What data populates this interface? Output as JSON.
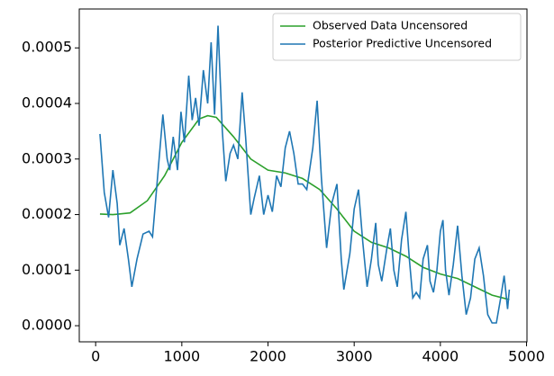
{
  "chart_data": {
    "type": "line",
    "xlim": [
      -190,
      5005
    ],
    "xticks": [
      0,
      1000,
      2000,
      3000,
      4000,
      5000
    ],
    "ylim": [
      -2.9e-05,
      0.00057
    ],
    "yticks": [
      {
        "value": 0,
        "label": "0.0000"
      },
      {
        "value": 0.0001,
        "label": "0.0001"
      },
      {
        "value": 0.0002,
        "label": "0.0002"
      },
      {
        "value": 0.0003,
        "label": "0.0003"
      },
      {
        "value": 0.0004,
        "label": "0.0004"
      },
      {
        "value": 0.0005,
        "label": "0.0005"
      }
    ],
    "legend": "upper right",
    "series": [
      {
        "name": "Observed Data Uncensored",
        "color": "#2ca02c",
        "x": [
          50,
          200,
          400,
          600,
          800,
          1000,
          1200,
          1300,
          1400,
          1600,
          1800,
          2000,
          2200,
          2400,
          2600,
          2800,
          3000,
          3200,
          3400,
          3600,
          3800,
          4000,
          4200,
          4400,
          4600,
          4800
        ],
        "values": [
          0.000201,
          0.0002,
          0.000203,
          0.000225,
          0.00027,
          0.00033,
          0.000372,
          0.000378,
          0.000375,
          0.00034,
          0.0003,
          0.00028,
          0.000275,
          0.000265,
          0.000245,
          0.00021,
          0.00017,
          0.00015,
          0.00014,
          0.000125,
          0.000105,
          9.3e-05,
          8.5e-05,
          7e-05,
          5.5e-05,
          4.7e-05
        ]
      },
      {
        "name": "Posterior Predictive Uncensored",
        "color": "#1f77b4",
        "x": [
          50,
          100,
          150,
          200,
          250,
          280,
          330,
          380,
          420,
          480,
          550,
          620,
          660,
          720,
          780,
          830,
          860,
          900,
          950,
          990,
          1030,
          1080,
          1120,
          1160,
          1200,
          1250,
          1300,
          1340,
          1380,
          1420,
          1470,
          1510,
          1560,
          1600,
          1650,
          1700,
          1740,
          1800,
          1840,
          1900,
          1950,
          2000,
          2050,
          2100,
          2150,
          2200,
          2250,
          2300,
          2350,
          2400,
          2450,
          2520,
          2570,
          2620,
          2680,
          2740,
          2800,
          2850,
          2880,
          2950,
          3000,
          3050,
          3100,
          3150,
          3200,
          3250,
          3280,
          3320,
          3380,
          3420,
          3460,
          3500,
          3550,
          3600,
          3640,
          3680,
          3720,
          3760,
          3800,
          3850,
          3880,
          3920,
          3960,
          4000,
          4030,
          4060,
          4100,
          4150,
          4200,
          4250,
          4300,
          4350,
          4400,
          4450,
          4500,
          4550,
          4600,
          4650,
          4700,
          4740,
          4780,
          4800
        ],
        "values": [
          0.000345,
          0.00024,
          0.000195,
          0.00028,
          0.00022,
          0.000145,
          0.000175,
          0.00012,
          7e-05,
          0.00012,
          0.000165,
          0.00017,
          0.00016,
          0.00027,
          0.00038,
          0.0003,
          0.00028,
          0.00034,
          0.00028,
          0.000385,
          0.00033,
          0.00045,
          0.00037,
          0.00041,
          0.00036,
          0.00046,
          0.0004,
          0.00051,
          0.00038,
          0.00054,
          0.00035,
          0.00026,
          0.00031,
          0.000325,
          0.0003,
          0.00042,
          0.00034,
          0.0002,
          0.00023,
          0.00027,
          0.0002,
          0.000235,
          0.000205,
          0.00027,
          0.00025,
          0.00032,
          0.00035,
          0.00031,
          0.000255,
          0.000255,
          0.000245,
          0.00032,
          0.000405,
          0.000265,
          0.00014,
          0.00022,
          0.000255,
          0.00012,
          6.5e-05,
          0.00013,
          0.00021,
          0.000245,
          0.00015,
          7e-05,
          0.00012,
          0.000185,
          0.00011,
          8e-05,
          0.00014,
          0.000175,
          0.0001,
          7e-05,
          0.000155,
          0.000205,
          0.00012,
          5e-05,
          6e-05,
          5e-05,
          0.00012,
          0.000145,
          8e-05,
          6e-05,
          0.0001,
          0.00017,
          0.00019,
          0.0001,
          5.5e-05,
          0.00011,
          0.00018,
          9e-05,
          2e-05,
          5e-05,
          0.00012,
          0.00014,
          9e-05,
          2e-05,
          5e-06,
          5e-06,
          5e-05,
          9e-05,
          3e-05,
          6.5e-05
        ]
      }
    ]
  }
}
